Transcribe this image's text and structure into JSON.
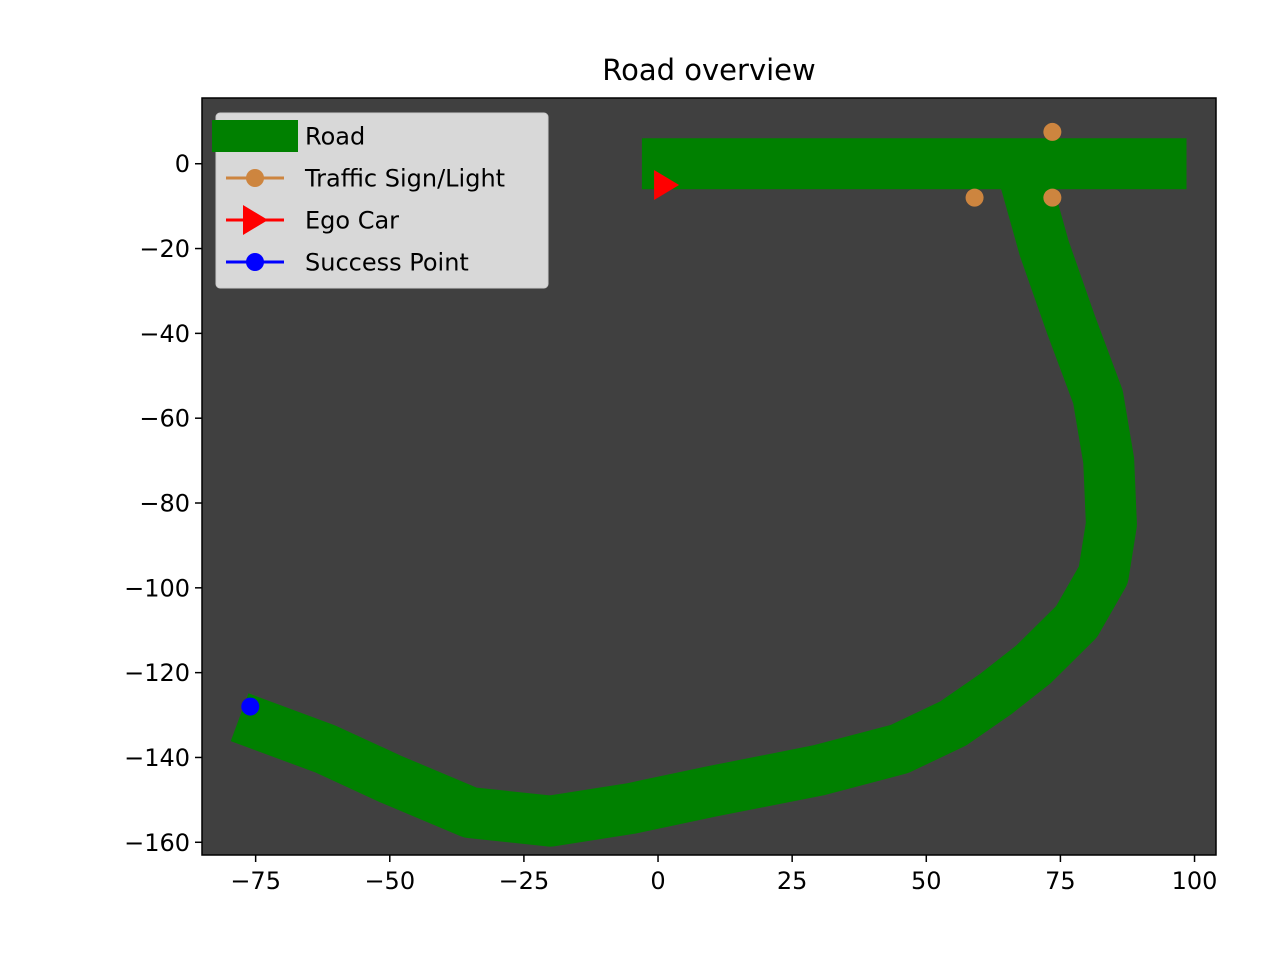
{
  "chart_data": {
    "type": "line",
    "title": "Road overview",
    "xlabel": "",
    "ylabel": "",
    "xlim": [
      -85,
      104
    ],
    "ylim": [
      -163,
      15.5
    ],
    "xticks": [
      -75,
      -50,
      -25,
      0,
      25,
      50,
      75,
      100
    ],
    "yticks": [
      0,
      -20,
      -40,
      -60,
      -80,
      -100,
      -120,
      -140,
      -160
    ],
    "xtick_labels": [
      "−75",
      "−50",
      "−25",
      "0",
      "25",
      "50",
      "75",
      "100"
    ],
    "ytick_labels": [
      "0",
      "−20",
      "−40",
      "−60",
      "−80",
      "−100",
      "−120",
      "−140",
      "−160"
    ],
    "grid": false,
    "legend_position": "upper left",
    "colors": {
      "background": "#404040",
      "road": "#008000",
      "traffic_sign": "#cd853f",
      "ego_car": "#ff0000",
      "success_point": "#0000ff"
    },
    "legend": [
      {
        "label": "Road",
        "kind": "road"
      },
      {
        "label": "Traffic Sign/Light",
        "kind": "traffic_sign"
      },
      {
        "label": "Ego Car",
        "kind": "ego_car"
      },
      {
        "label": "Success Point",
        "kind": "success_point"
      }
    ],
    "road_width": 9.5,
    "roads": [
      [
        [
          -3,
          0
        ],
        [
          98.5,
          0
        ]
      ],
      [
        [
          68,
          -2
        ],
        [
          72,
          -20
        ],
        [
          77,
          -38
        ],
        [
          82,
          -55
        ],
        [
          84,
          -70
        ],
        [
          84.5,
          -85
        ],
        [
          83,
          -97
        ],
        [
          78,
          -108
        ],
        [
          70,
          -118
        ],
        [
          63,
          -125
        ],
        [
          55,
          -132
        ],
        [
          45,
          -138
        ],
        [
          30,
          -143
        ],
        [
          10,
          -148
        ],
        [
          -5,
          -152
        ],
        [
          -20,
          -155
        ],
        [
          -35,
          -153
        ],
        [
          -50,
          -145
        ],
        [
          -62,
          -138
        ],
        [
          -78,
          -130.5
        ]
      ]
    ],
    "traffic_signs": [
      [
        73.5,
        7.5
      ],
      [
        59,
        -8
      ],
      [
        73.5,
        -8
      ]
    ],
    "ego_car": {
      "x": 1.5,
      "y": -5
    },
    "success_point": {
      "x": -76,
      "y": -128
    }
  }
}
